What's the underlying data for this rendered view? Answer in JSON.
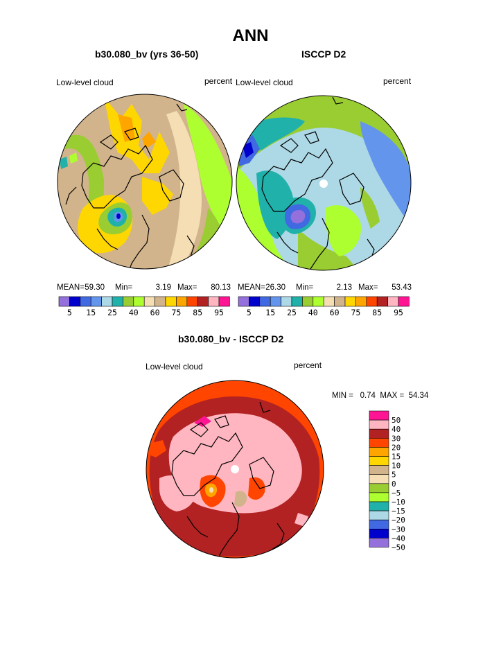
{
  "title": "ANN",
  "colors": {
    "seq": [
      "#9370DB",
      "#0000CD",
      "#4169E1",
      "#6495ED",
      "#ADD8E6",
      "#20B2AA",
      "#9ACD32",
      "#ADFF2F",
      "#F5DEB3",
      "#D2B48C",
      "#FFD700",
      "#FFA500",
      "#FF4500",
      "#B22222",
      "#FFB6C1",
      "#FF1493"
    ],
    "diff": [
      "#FF1493",
      "#FFB6C1",
      "#B22222",
      "#FF4500",
      "#FFA500",
      "#FFD700",
      "#D2B48C",
      "#F5DEB3",
      "#9ACD32",
      "#ADFF2F",
      "#20B2AA",
      "#ADD8E6",
      "#4169E1",
      "#0000CD",
      "#9370DB"
    ]
  },
  "panels": {
    "model": {
      "heading": "b30.080_bv (yrs 36-50)",
      "variable": "Low-level cloud",
      "units": "percent",
      "stats": {
        "mean_label": "MEAN=",
        "mean": "59.30",
        "min_label": "Min=",
        "min": "3.19",
        "max_label": "Max=",
        "max": "80.13"
      },
      "colorbar_ticks": [
        "5",
        "15",
        "25",
        "40",
        "60",
        "75",
        "85",
        "95"
      ]
    },
    "obs": {
      "heading": "ISCCP D2",
      "variable": "Low-level cloud",
      "units": "percent",
      "stats": {
        "mean_label": "MEAN=",
        "mean": "26.30",
        "min_label": "Min=",
        "min": "2.13",
        "max_label": "Max=",
        "max": "53.43"
      },
      "colorbar_ticks": [
        "5",
        "15",
        "25",
        "40",
        "60",
        "75",
        "85",
        "95"
      ]
    },
    "diff": {
      "heading": "b30.080_bv - ISCCP D2",
      "variable": "Low-level cloud",
      "units": "percent",
      "minmax_text": "MIN =   0.74  MAX =  54.34",
      "colorbar_ticks": [
        "50",
        "40",
        "30",
        "20",
        "15",
        "10",
        "5",
        "0",
        "−5",
        "−10",
        "−15",
        "−20",
        "−30",
        "−40",
        "−50"
      ]
    }
  }
}
